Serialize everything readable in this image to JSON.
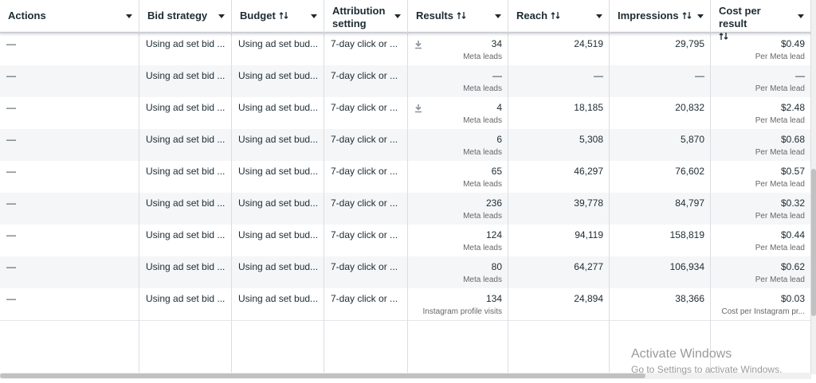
{
  "table": {
    "columns": [
      "Actions",
      "Bid strategy",
      "Budget",
      "Attribution setting",
      "Results",
      "Reach",
      "Impressions",
      "Cost per result"
    ],
    "rows": [
      {
        "actions": "—",
        "bid": "Using ad set bid ...",
        "budget": "Using ad set bud...",
        "attribution": "7-day click or ...",
        "results": "34",
        "results_type": "Meta leads",
        "reach": "24,519",
        "impressions": "29,795",
        "cost": "$0.49",
        "cost_type": "Per Meta lead",
        "download_icon": true
      },
      {
        "actions": "—",
        "bid": "Using ad set bid ...",
        "budget": "Using ad set bud...",
        "attribution": "7-day click or ...",
        "results": "—",
        "results_type": "Meta leads",
        "reach": "—",
        "impressions": "—",
        "cost": "—",
        "cost_type": "Per Meta lead",
        "download_icon": false
      },
      {
        "actions": "—",
        "bid": "Using ad set bid ...",
        "budget": "Using ad set bud...",
        "attribution": "7-day click or ...",
        "results": "4",
        "results_type": "Meta leads",
        "reach": "18,185",
        "impressions": "20,832",
        "cost": "$2.48",
        "cost_type": "Per Meta lead",
        "download_icon": true
      },
      {
        "actions": "—",
        "bid": "Using ad set bid ...",
        "budget": "Using ad set bud...",
        "attribution": "7-day click or ...",
        "results": "6",
        "results_type": "Meta leads",
        "reach": "5,308",
        "impressions": "5,870",
        "cost": "$0.68",
        "cost_type": "Per Meta lead",
        "download_icon": false
      },
      {
        "actions": "—",
        "bid": "Using ad set bid ...",
        "budget": "Using ad set bud...",
        "attribution": "7-day click or ...",
        "results": "65",
        "results_type": "Meta leads",
        "reach": "46,297",
        "impressions": "76,602",
        "cost": "$0.57",
        "cost_type": "Per Meta lead",
        "download_icon": false
      },
      {
        "actions": "—",
        "bid": "Using ad set bid ...",
        "budget": "Using ad set bud...",
        "attribution": "7-day click or ...",
        "results": "236",
        "results_type": "Meta leads",
        "reach": "39,778",
        "impressions": "84,797",
        "cost": "$0.32",
        "cost_type": "Per Meta lead",
        "download_icon": false
      },
      {
        "actions": "—",
        "bid": "Using ad set bid ...",
        "budget": "Using ad set bud...",
        "attribution": "7-day click or ...",
        "results": "124",
        "results_type": "Meta leads",
        "reach": "94,119",
        "impressions": "158,819",
        "cost": "$0.44",
        "cost_type": "Per Meta lead",
        "download_icon": false
      },
      {
        "actions": "—",
        "bid": "Using ad set bid ...",
        "budget": "Using ad set bud...",
        "attribution": "7-day click or ...",
        "results": "80",
        "results_type": "Meta leads",
        "reach": "64,277",
        "impressions": "106,934",
        "cost": "$0.62",
        "cost_type": "Per Meta lead",
        "download_icon": false
      },
      {
        "actions": "—",
        "bid": "Using ad set bid ...",
        "budget": "Using ad set bud...",
        "attribution": "7-day click or ...",
        "results": "134",
        "results_type": "Instagram profile visits",
        "reach": "24,894",
        "impressions": "38,366",
        "cost": "$0.03",
        "cost_type": "Cost per Instagram pr...",
        "download_icon": false
      }
    ]
  },
  "watermark": {
    "title": "Activate Windows",
    "subtitle": "Go to Settings to activate Windows."
  }
}
